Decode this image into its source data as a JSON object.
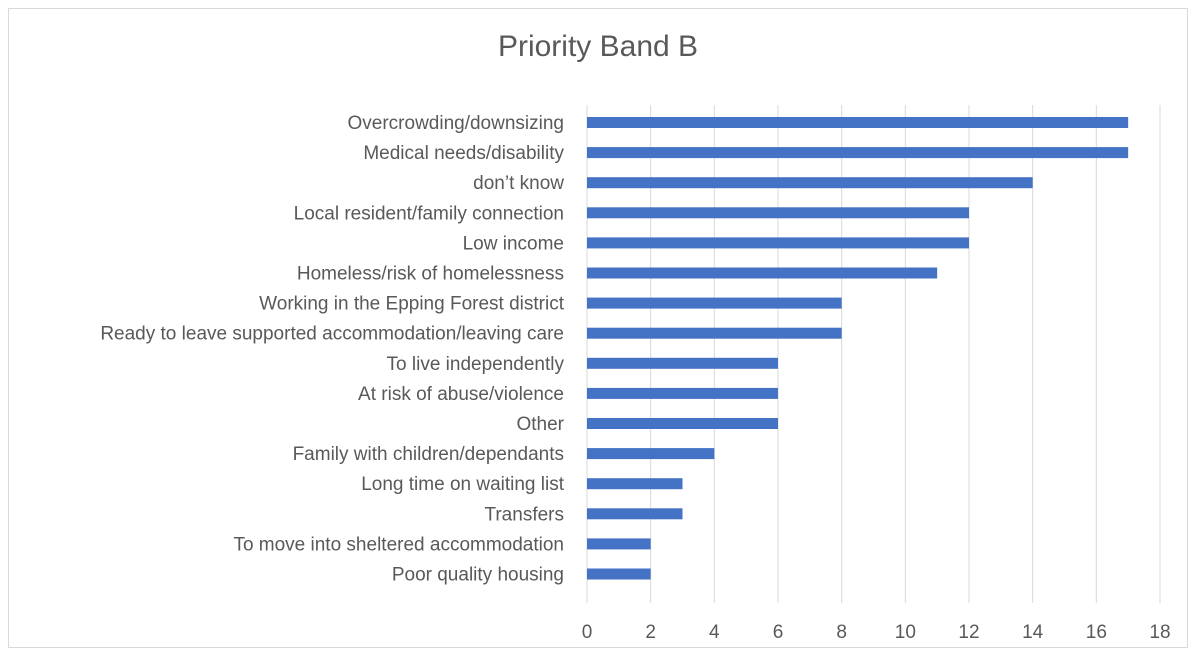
{
  "chart_data": {
    "type": "bar",
    "orientation": "horizontal",
    "title": "Priority Band B",
    "categories": [
      "Overcrowding/downsizing",
      "Medical needs/disability",
      "don’t know",
      "Local resident/family connection",
      "Low income",
      "Homeless/risk of homelessness",
      "Working in the Epping Forest district",
      "Ready to leave supported accommodation/leaving care",
      "To live independently",
      "At risk of abuse/violence",
      "Other",
      "Family with children/dependants",
      "Long time on waiting list",
      "Transfers",
      "To move into sheltered accommodation",
      "Poor quality housing"
    ],
    "values": [
      17,
      17,
      14,
      12,
      12,
      11,
      8,
      8,
      6,
      6,
      6,
      4,
      3,
      3,
      2,
      2
    ],
    "xlim": [
      0,
      18
    ],
    "xticks": [
      "0",
      "2",
      "4",
      "6",
      "8",
      "10",
      "12",
      "14",
      "16",
      "18"
    ],
    "bar_color": "#4472c4",
    "grid": "vertical",
    "grid_color": "#d9d9d9",
    "legend": "none"
  }
}
